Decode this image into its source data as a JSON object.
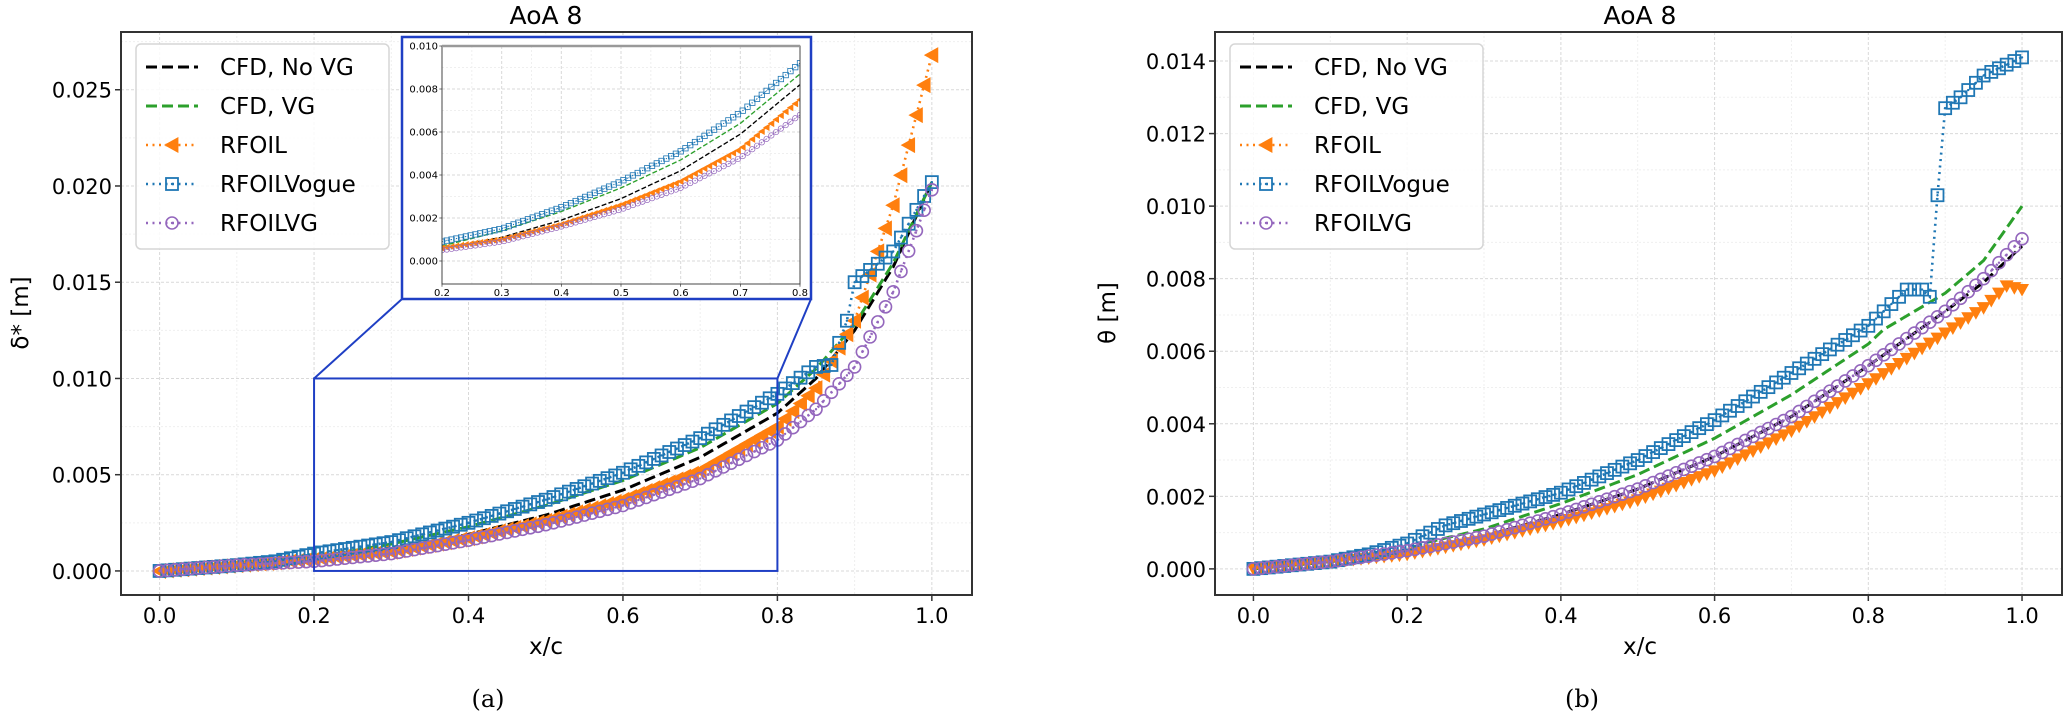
{
  "chart_data": [
    {
      "type": "line",
      "panel": "(a)",
      "title": "AoA 8",
      "xlabel": "x/c",
      "ylabel": "δ* [m]",
      "xlim": [
        -0.05,
        1.052
      ],
      "ylim": [
        -0.00125,
        0.028
      ],
      "xticks": [
        0.0,
        0.2,
        0.4,
        0.6,
        0.8,
        1.0
      ],
      "xtick_labels": [
        "0.0",
        "0.2",
        "0.4",
        "0.6",
        "0.8",
        "1.0"
      ],
      "yticks": [
        0.0,
        0.005,
        0.01,
        0.015,
        0.02,
        0.025
      ],
      "ytick_labels": [
        "0.000",
        "0.005",
        "0.010",
        "0.015",
        "0.020",
        "0.025"
      ],
      "grid": true,
      "legend": "top-left",
      "inset": {
        "xlim": [
          0.2,
          0.8
        ],
        "ylim": [
          -0.00107,
          0.01
        ],
        "xticks": [
          0.2,
          0.3,
          0.4,
          0.5,
          0.6,
          0.7,
          0.8
        ],
        "xtick_labels": [
          "0.2",
          "0.3",
          "0.4",
          "0.5",
          "0.6",
          "0.7",
          "0.8"
        ],
        "yticks": [
          0.0,
          0.002,
          0.004,
          0.006,
          0.008,
          0.01
        ],
        "ytick_labels": [
          "0.000",
          "0.002",
          "0.004",
          "0.006",
          "0.008",
          "0.010"
        ],
        "zoom_region": {
          "x": [
            0.2,
            0.8
          ],
          "y": [
            0.0,
            0.01
          ]
        }
      },
      "series": [
        {
          "name": "CFD, No VG",
          "color": "#000000",
          "style": "dashed",
          "marker": "none",
          "x": [
            0,
            0.1,
            0.2,
            0.3,
            0.4,
            0.5,
            0.6,
            0.7,
            0.8,
            0.85,
            0.9,
            0.95,
            1.0
          ],
          "y": [
            0,
            0.0003,
            0.0006,
            0.0011,
            0.0019,
            0.0029,
            0.0042,
            0.0059,
            0.0082,
            0.01,
            0.0125,
            0.0158,
            0.0202
          ]
        },
        {
          "name": "CFD, VG",
          "color": "#2ca02c",
          "style": "dashed",
          "marker": "none",
          "x": [
            0,
            0.1,
            0.2,
            0.3,
            0.4,
            0.5,
            0.6,
            0.7,
            0.8,
            0.85,
            0.9,
            0.95,
            1.0
          ],
          "y": [
            0,
            0.0003,
            0.0007,
            0.0014,
            0.0023,
            0.0034,
            0.0047,
            0.0064,
            0.0087,
            0.0105,
            0.0128,
            0.016,
            0.0202
          ]
        },
        {
          "name": "RFOIL",
          "color": "#ff7f0e",
          "style": "dotted",
          "marker": "triangle-left",
          "x": [
            0,
            0.1,
            0.2,
            0.3,
            0.4,
            0.5,
            0.6,
            0.7,
            0.8,
            0.85,
            0.9,
            0.95,
            1.0
          ],
          "y": [
            0,
            0.0003,
            0.0006,
            0.001,
            0.0017,
            0.0026,
            0.0037,
            0.0052,
            0.0075,
            0.0095,
            0.013,
            0.019,
            0.0268
          ]
        },
        {
          "name": "RFOILVogue",
          "color": "#1f77b4",
          "style": "dotted",
          "marker": "square",
          "x": [
            0,
            0.1,
            0.15,
            0.2,
            0.3,
            0.4,
            0.5,
            0.6,
            0.7,
            0.8,
            0.85,
            0.87,
            0.89,
            0.9,
            0.95,
            1.0
          ],
          "y": [
            0,
            0.0003,
            0.0005,
            0.0009,
            0.0015,
            0.0025,
            0.0037,
            0.0051,
            0.0069,
            0.0092,
            0.0106,
            0.0107,
            0.013,
            0.015,
            0.0166,
            0.0202
          ]
        },
        {
          "name": "RFOILVG",
          "color": "#9467bd",
          "style": "dotted",
          "marker": "circle",
          "x": [
            0,
            0.1,
            0.2,
            0.3,
            0.4,
            0.5,
            0.6,
            0.7,
            0.8,
            0.85,
            0.9,
            0.95,
            1.0
          ],
          "y": [
            0,
            0.0003,
            0.0005,
            0.0009,
            0.0016,
            0.0024,
            0.0034,
            0.0048,
            0.0068,
            0.0084,
            0.0106,
            0.0145,
            0.0198
          ]
        }
      ]
    },
    {
      "type": "line",
      "panel": "(b)",
      "title": "AoA 8",
      "xlabel": "x/c",
      "ylabel": "θ [m]",
      "xlim": [
        -0.05,
        1.052
      ],
      "ylim": [
        -0.00072,
        0.0148
      ],
      "xticks": [
        0.0,
        0.2,
        0.4,
        0.6,
        0.8,
        1.0
      ],
      "xtick_labels": [
        "0.0",
        "0.2",
        "0.4",
        "0.6",
        "0.8",
        "1.0"
      ],
      "yticks": [
        0.0,
        0.002,
        0.004,
        0.006,
        0.008,
        0.01,
        0.012,
        0.014
      ],
      "ytick_labels": [
        "0.000",
        "0.002",
        "0.004",
        "0.006",
        "0.008",
        "0.010",
        "0.012",
        "0.014"
      ],
      "grid": true,
      "legend": "top-left",
      "series": [
        {
          "name": "CFD, No VG",
          "color": "#000000",
          "style": "dashed",
          "marker": "none",
          "x": [
            0,
            0.1,
            0.2,
            0.3,
            0.4,
            0.5,
            0.6,
            0.7,
            0.8,
            0.9,
            0.95,
            1.0
          ],
          "y": [
            0,
            0.0002,
            0.0005,
            0.0009,
            0.0015,
            0.0022,
            0.0031,
            0.0042,
            0.0056,
            0.0071,
            0.0079,
            0.0089
          ]
        },
        {
          "name": "CFD, VG",
          "color": "#2ca02c",
          "style": "dashed",
          "marker": "none",
          "x": [
            0,
            0.1,
            0.2,
            0.22,
            0.3,
            0.4,
            0.5,
            0.6,
            0.7,
            0.8,
            0.82,
            0.9,
            0.95,
            1.0
          ],
          "y": [
            0,
            0.0002,
            0.0005,
            0.0007,
            0.0011,
            0.0018,
            0.0026,
            0.0036,
            0.0048,
            0.0062,
            0.0066,
            0.0076,
            0.0085,
            0.01
          ]
        },
        {
          "name": "RFOIL",
          "color": "#ff7f0e",
          "style": "dotted",
          "marker": "triangle-down",
          "x": [
            0,
            0.1,
            0.2,
            0.3,
            0.4,
            0.5,
            0.6,
            0.7,
            0.8,
            0.9,
            0.95,
            0.98,
            1.0
          ],
          "y": [
            0,
            0.0002,
            0.0004,
            0.0008,
            0.0013,
            0.0019,
            0.0027,
            0.0038,
            0.0051,
            0.0065,
            0.0072,
            0.0078,
            0.0077
          ]
        },
        {
          "name": "RFOILVogue",
          "color": "#1f77b4",
          "style": "dotted",
          "marker": "square",
          "x": [
            0,
            0.1,
            0.15,
            0.2,
            0.25,
            0.3,
            0.4,
            0.5,
            0.6,
            0.7,
            0.8,
            0.85,
            0.87,
            0.88,
            0.89,
            0.9,
            0.92,
            0.95,
            1.0
          ],
          "y": [
            0,
            0.0002,
            0.0004,
            0.0007,
            0.0012,
            0.0015,
            0.0021,
            0.003,
            0.0041,
            0.0054,
            0.0067,
            0.0077,
            0.0077,
            0.0075,
            0.0103,
            0.0127,
            0.013,
            0.0136,
            0.0141
          ]
        },
        {
          "name": "RFOILVG",
          "color": "#9467bd",
          "style": "dotted",
          "marker": "circle",
          "x": [
            0,
            0.1,
            0.2,
            0.3,
            0.4,
            0.5,
            0.6,
            0.7,
            0.8,
            0.9,
            0.95,
            1.0
          ],
          "y": [
            0,
            0.0002,
            0.0005,
            0.0009,
            0.0015,
            0.0022,
            0.0031,
            0.0042,
            0.0056,
            0.0071,
            0.008,
            0.0091
          ]
        }
      ]
    }
  ]
}
